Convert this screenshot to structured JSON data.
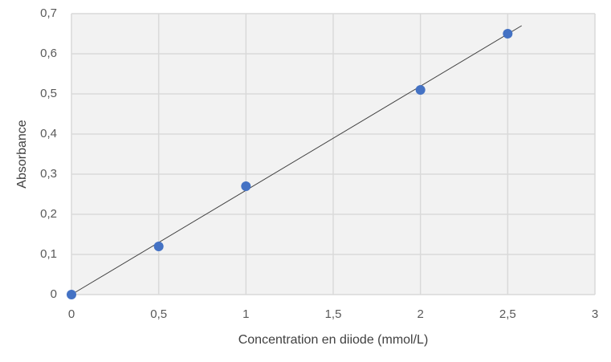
{
  "chart_data": {
    "type": "scatter",
    "x_label": "Concentration en diiode (mmol/L)",
    "y_label": "Absorbance",
    "series": [
      {
        "color": "#4472c4",
        "x": [
          0,
          0.5,
          1,
          2,
          2.5
        ],
        "values": [
          0,
          0.12,
          0.27,
          0.51,
          0.65
        ]
      }
    ],
    "trendline": {
      "color": "#404040",
      "x": [
        0,
        2.58
      ],
      "values": [
        0,
        0.67
      ]
    },
    "xlim": [
      0,
      3
    ],
    "ylim": [
      0,
      0.7
    ],
    "xticks": [
      0,
      {
        "value": 0.5,
        "label": "0,5"
      },
      1,
      {
        "value": 1.5,
        "label": "1,5"
      },
      2,
      {
        "value": 2.5,
        "label": "2,5"
      },
      3
    ],
    "yticks": [
      0,
      {
        "value": 0.1,
        "label": "0,1"
      },
      {
        "value": 0.2,
        "label": "0,2"
      },
      {
        "value": 0.3,
        "label": "0,3"
      },
      {
        "value": 0.4,
        "label": "0,4"
      },
      {
        "value": 0.5,
        "label": "0,5"
      },
      {
        "value": 0.6,
        "label": "0,6"
      },
      {
        "value": 0.7,
        "label": "0,7"
      }
    ],
    "grid": true
  }
}
